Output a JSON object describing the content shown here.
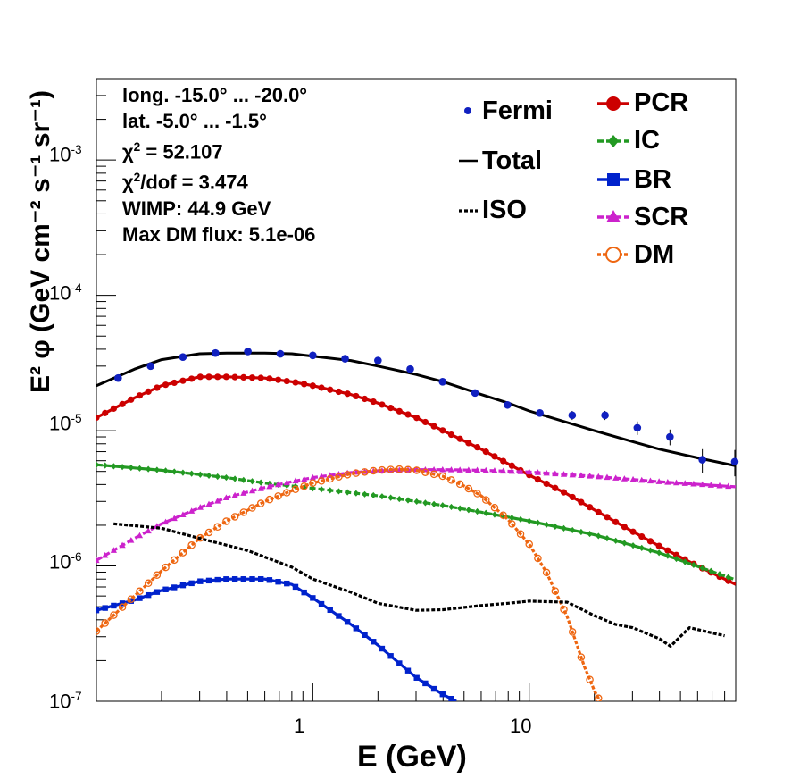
{
  "chart_data": {
    "type": "scatter",
    "xscale": "log",
    "yscale": "log",
    "xlim": [
      0.1,
      90
    ],
    "ylim": [
      1e-07,
      0.004
    ],
    "xlabel": "E (GeV)",
    "ylabel": "E² φ (GeV cm⁻² s⁻¹ sr⁻¹)",
    "x_tick_labels": [
      "1",
      "10"
    ],
    "y_tick_labels": [
      {
        "base": "10",
        "exp": "-7"
      },
      {
        "base": "10",
        "exp": "-6"
      },
      {
        "base": "10",
        "exp": "-5"
      },
      {
        "base": "10",
        "exp": "-4"
      },
      {
        "base": "10",
        "exp": "-3"
      }
    ],
    "info": {
      "longitude": "long. -15.0° ... -20.0°",
      "latitude": "lat. -5.0° ... -1.5°",
      "chi2": "= 52.107",
      "chi2_dof": "/dof = 3.474",
      "wimp": "WIMP: 44.9 GeV",
      "max_dm_flux": "Max DM flux: 5.1e-06"
    },
    "fermi": {
      "name": "Fermi",
      "color": "#1020c0",
      "x": [
        0.126,
        0.178,
        0.251,
        0.355,
        0.501,
        0.708,
        1.0,
        1.41,
        2.0,
        2.82,
        3.98,
        5.62,
        7.94,
        11.2,
        15.8,
        22.4,
        31.6,
        44.7,
        63.1,
        89.1
      ],
      "y": [
        2.45e-05,
        3e-05,
        3.5e-05,
        3.75e-05,
        3.85e-05,
        3.7e-05,
        3.6e-05,
        3.4e-05,
        3.3e-05,
        2.85e-05,
        2.3e-05,
        1.9e-05,
        1.55e-05,
        1.35e-05,
        1.3e-05,
        1.3e-05,
        1.05e-05,
        9e-06,
        6.1e-06,
        5.9e-06
      ],
      "err": [
        0,
        0,
        0,
        0,
        0,
        0,
        0,
        0,
        0,
        0,
        0,
        0,
        0,
        0,
        1e-06,
        1e-06,
        1.2e-06,
        1.2e-06,
        1.2e-06,
        1.3e-06
      ]
    },
    "series": [
      {
        "name": "Total",
        "style": "solid",
        "marker": "none",
        "color": "#000000",
        "x": [
          0.1,
          0.15,
          0.2,
          0.3,
          0.4,
          0.6,
          0.8,
          1.0,
          1.5,
          2.0,
          3.0,
          4.0,
          6.0,
          8.0,
          10,
          15,
          20,
          30,
          40,
          60,
          90
        ],
        "y": [
          2.15e-05,
          2.85e-05,
          3.35e-05,
          3.7e-05,
          3.75e-05,
          3.75e-05,
          3.7e-05,
          3.55e-05,
          3.3e-05,
          3e-05,
          2.6e-05,
          2.3e-05,
          1.85e-05,
          1.6e-05,
          1.4e-05,
          1.15e-05,
          1e-05,
          8.3e-06,
          7.3e-06,
          6.3e-06,
          5.5e-06
        ]
      },
      {
        "name": "PCR",
        "style": "solid",
        "marker": "circle",
        "color": "#cc0000",
        "x": [
          0.1,
          0.15,
          0.2,
          0.3,
          0.4,
          0.6,
          0.8,
          1.0,
          1.5,
          2.0,
          3.0,
          4.0,
          6.0,
          8.0,
          10,
          15,
          20,
          30,
          40,
          60,
          90
        ],
        "y": [
          1.25e-05,
          1.75e-05,
          2.15e-05,
          2.5e-05,
          2.5e-05,
          2.45e-05,
          2.3e-05,
          2.15e-05,
          1.85e-05,
          1.6e-05,
          1.25e-05,
          1e-05,
          7.3e-06,
          5.7e-06,
          4.7e-06,
          3.4e-06,
          2.6e-06,
          1.8e-06,
          1.4e-06,
          1e-06,
          7.3e-07
        ]
      },
      {
        "name": "IC",
        "style": "dashed",
        "marker": "diamond",
        "color": "#229922",
        "x": [
          0.1,
          0.2,
          0.4,
          0.6,
          1.0,
          2.0,
          4.0,
          6.0,
          10,
          20,
          40,
          90
        ],
        "y": [
          5.6e-06,
          5.1e-06,
          4.5e-06,
          4.1e-06,
          3.75e-06,
          3.3e-06,
          2.8e-06,
          2.5e-06,
          2.15e-06,
          1.7e-06,
          1.25e-06,
          7.9e-07
        ]
      },
      {
        "name": "BR",
        "style": "solid",
        "marker": "square",
        "color": "#0022cc",
        "x": [
          0.1,
          0.15,
          0.2,
          0.3,
          0.4,
          0.6,
          0.8,
          1.0,
          1.5,
          2.0,
          3.0,
          4.0,
          4.6
        ],
        "y": [
          4.7e-07,
          5.6e-07,
          6.6e-07,
          7.7e-07,
          8e-07,
          8e-07,
          7.3e-07,
          5.8e-07,
          3.7e-07,
          2.6e-07,
          1.5e-07,
          1.12e-07,
          1e-07
        ]
      },
      {
        "name": "SCR",
        "style": "dashed",
        "marker": "triangle",
        "color": "#cc22cc",
        "x": [
          0.1,
          0.15,
          0.2,
          0.3,
          0.4,
          0.6,
          0.8,
          1.0,
          1.5,
          2.0,
          3.0,
          4.0,
          6.0,
          10,
          20,
          40,
          90
        ],
        "y": [
          1.1e-06,
          1.6e-06,
          2.05e-06,
          2.7e-06,
          3.2e-06,
          3.8e-06,
          4.2e-06,
          4.5e-06,
          4.9e-06,
          5.05e-06,
          5.15e-06,
          5.15e-06,
          5.1e-06,
          4.95e-06,
          4.6e-06,
          4.2e-06,
          3.85e-06
        ]
      },
      {
        "name": "DM",
        "style": "dotted",
        "marker": "open-circle",
        "color": "#ee6611",
        "x": [
          0.1,
          0.15,
          0.2,
          0.3,
          0.4,
          0.6,
          0.8,
          1.0,
          1.5,
          2.0,
          2.5,
          3.0,
          4.0,
          5.0,
          6.0,
          8.0,
          10,
          12,
          15,
          18,
          20,
          22
        ],
        "y": [
          3.3e-07,
          6e-07,
          9.2e-07,
          1.6e-06,
          2.15e-06,
          3e-06,
          3.6e-06,
          4.1e-06,
          4.8e-06,
          5.1e-06,
          5.2e-06,
          5.1e-06,
          4.6e-06,
          3.9e-06,
          3.3e-06,
          2.2e-06,
          1.45e-06,
          9e-07,
          4.2e-07,
          1.8e-07,
          1.2e-07,
          9e-08
        ]
      },
      {
        "name": "ISO",
        "style": "dotted",
        "marker": "none",
        "color": "#000000",
        "x": [
          0.12,
          0.2,
          0.3,
          0.5,
          0.8,
          1.0,
          1.5,
          2.0,
          3.0,
          4.0,
          6.0,
          8.0,
          10,
          15,
          20,
          25,
          30,
          40,
          45,
          55,
          70,
          80
        ],
        "y": [
          2.05e-06,
          1.9e-06,
          1.6e-06,
          1.3e-06,
          9.8e-07,
          8e-07,
          6.4e-07,
          5.3e-07,
          4.7e-07,
          4.75e-07,
          5.1e-07,
          5.3e-07,
          5.5e-07,
          5.4e-07,
          4.3e-07,
          3.7e-07,
          3.5e-07,
          2.9e-07,
          2.55e-07,
          3.5e-07,
          3.2e-07,
          3.05e-07
        ]
      }
    ]
  }
}
